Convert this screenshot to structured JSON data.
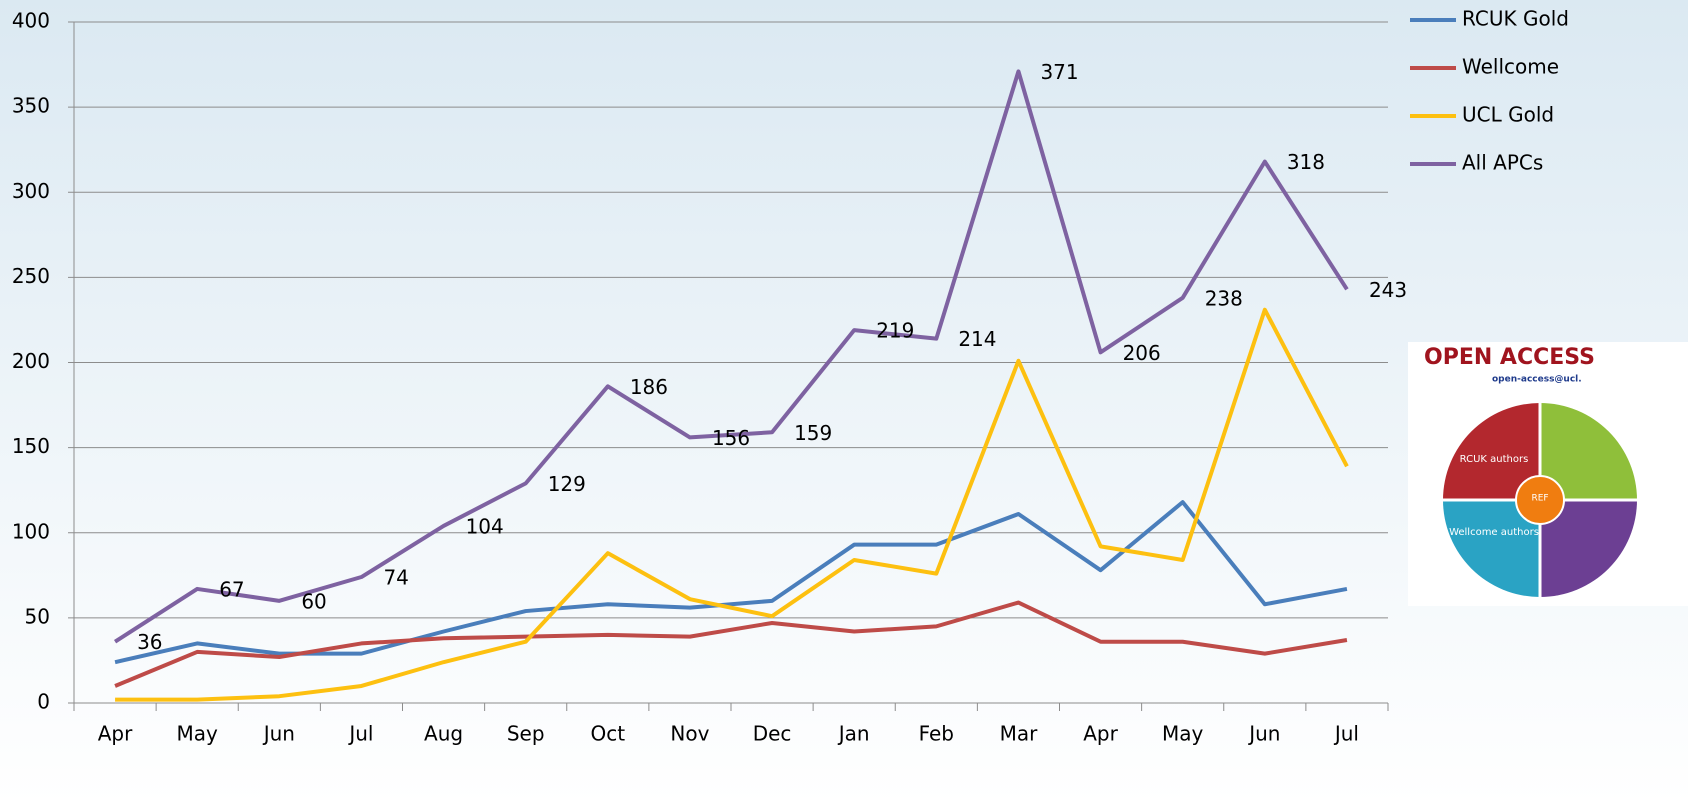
{
  "chart_data": {
    "type": "line",
    "categories": [
      "Apr",
      "May",
      "Jun",
      "Jul",
      "Aug",
      "Sep",
      "Oct",
      "Nov",
      "Dec",
      "Jan",
      "Feb",
      "Mar",
      "Apr",
      "May",
      "Jun",
      "Jul"
    ],
    "series": [
      {
        "name": "RCUK Gold",
        "color": "#4a7ebb",
        "values": [
          24,
          35,
          29,
          29,
          42,
          54,
          58,
          56,
          60,
          93,
          93,
          111,
          78,
          118,
          58,
          67
        ]
      },
      {
        "name": "Wellcome",
        "color": "#be4b48",
        "values": [
          10,
          30,
          27,
          35,
          38,
          39,
          40,
          39,
          47,
          42,
          45,
          59,
          36,
          36,
          29,
          37
        ]
      },
      {
        "name": "UCL Gold",
        "color": "#fdc010",
        "values": [
          2,
          2,
          4,
          10,
          24,
          36,
          88,
          61,
          51,
          84,
          76,
          201,
          92,
          84,
          231,
          139
        ]
      },
      {
        "name": "All APCs",
        "color": "#7e62a1",
        "values": [
          36,
          67,
          60,
          74,
          104,
          129,
          186,
          156,
          159,
          219,
          214,
          371,
          206,
          238,
          318,
          243
        ],
        "data_labels": true
      }
    ],
    "ylim": [
      0,
      400
    ],
    "yticks": [
      0,
      50,
      100,
      150,
      200,
      250,
      300,
      350,
      400
    ],
    "grid": true,
    "legend": "right"
  },
  "inset": {
    "title": "OPEN ACCESS",
    "email": "open-access@ucl.",
    "segments": [
      "RCUK authors",
      "Wellcome authors"
    ],
    "center": "REF"
  }
}
